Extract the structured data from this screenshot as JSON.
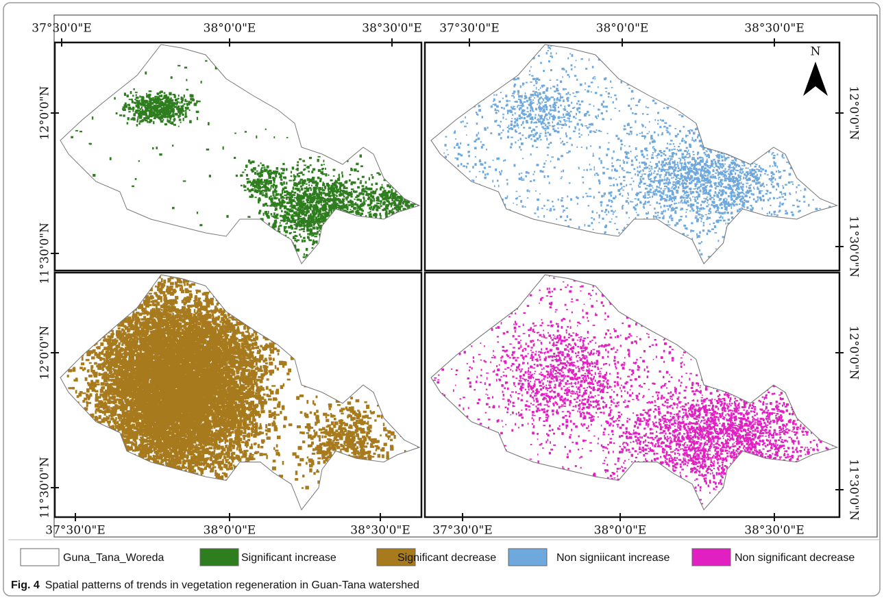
{
  "panels": [
    {
      "x_labels": [
        "37°30'0\"E",
        "38°0'0\"E",
        "38°30'0\"E"
      ],
      "y_labels": [
        "12°0'0\"N",
        "11°30'0\"N"
      ]
    },
    {
      "x_labels": [
        "37°30'0\"E",
        "38°0'0\"E",
        "38°30'0\"E"
      ],
      "y_labels": [
        "12°0'0\"N",
        "11°30'0\"N"
      ]
    },
    {
      "x_labels": [
        "37°30'0\"E",
        "38°0'0\"E",
        "38°30'0\"E"
      ],
      "y_labels": [
        "12°0'0\"N",
        "11°30'0\"N"
      ]
    },
    {
      "x_labels": [
        "37°30'0\"E",
        "38°0'0\"E",
        "38°30'0\"E"
      ],
      "y_labels": [
        "12°0'0\"N",
        "11°30'0\"N"
      ]
    }
  ],
  "north": "N",
  "legend": [
    "Guna_Tana_Woreda",
    "Significant increase",
    "Significant decrease",
    "Non signiicant increase",
    "Non significant decrease"
  ],
  "caption": {
    "label": "Fig. 4",
    "text": "Spatial patterns of trends in vegetation regeneration in Guan-Tana watershed"
  }
}
